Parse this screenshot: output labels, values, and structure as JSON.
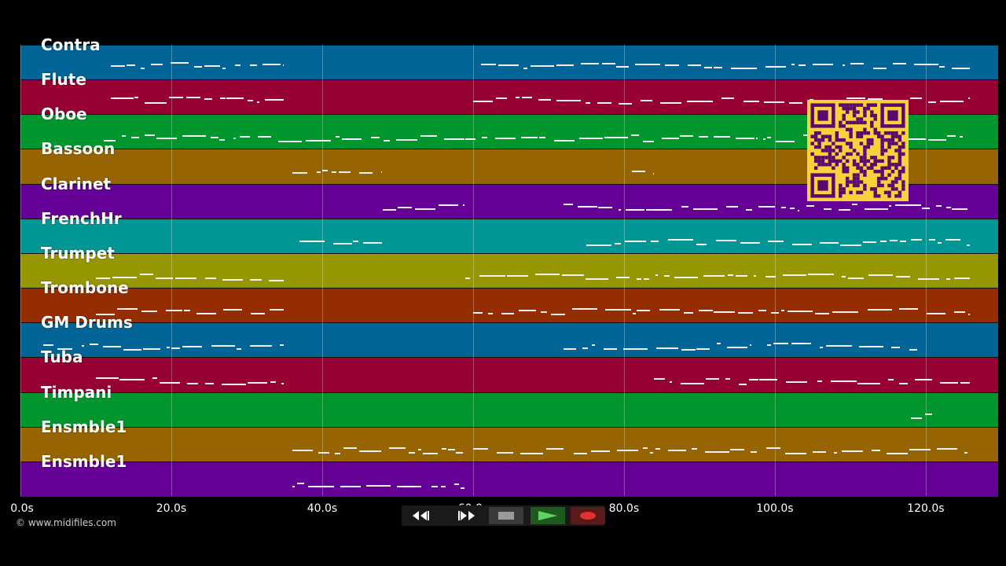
{
  "tracks": [
    {
      "name": "Contra",
      "color": "#006496"
    },
    {
      "name": "Flute",
      "color": "#960032"
    },
    {
      "name": "Oboe",
      "color": "#00962d"
    },
    {
      "name": "Bassoon",
      "color": "#966400"
    },
    {
      "name": "Clarinet",
      "color": "#640096"
    },
    {
      "name": "FrenchHr",
      "color": "#009696"
    },
    {
      "name": "Trumpet",
      "color": "#969600"
    },
    {
      "name": "Trombone",
      "color": "#962d00"
    },
    {
      "name": "GM Drums",
      "color": "#006496"
    },
    {
      "name": "Tuba",
      "color": "#960032"
    },
    {
      "name": "Timpani",
      "color": "#00962d"
    },
    {
      "name": "Ensmble1",
      "color": "#966400"
    },
    {
      "name": "Ensmble1",
      "color": "#640096"
    }
  ],
  "time_axis": {
    "ticks": [
      "0.0s",
      "20.0s",
      "40.0s",
      "60.0s",
      "80.0s",
      "100.0s",
      "120.0s"
    ],
    "tick_values": [
      0,
      20,
      40,
      60,
      80,
      100,
      120
    ],
    "max_seconds": 129.6
  },
  "copyright": "© www.midifiles.com",
  "controls": {
    "rewind": "rewind-icon",
    "fast_forward": "fast-forward-icon",
    "stop": "stop-icon",
    "play": "play-icon",
    "record": "record-icon"
  },
  "qr_code": {
    "color": "#f7d23a",
    "fg": "#5a0a6e"
  }
}
